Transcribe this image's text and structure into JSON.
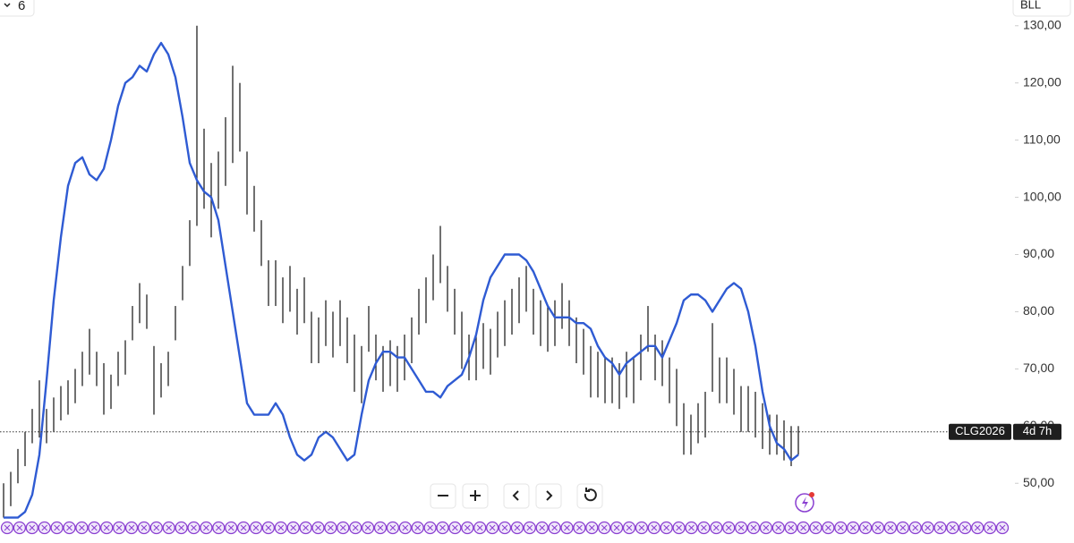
{
  "chart_data": {
    "type": "hl_bar",
    "interval": "6",
    "symbol_short": "BLL",
    "symbol": "CLG2026",
    "countdown": "4d 7h",
    "ylim": [
      43,
      134.5
    ],
    "yticks": [
      {
        "value": 50,
        "label": "50,00"
      },
      {
        "value": 60,
        "label": "60,00"
      },
      {
        "value": 70,
        "label": "70,00"
      },
      {
        "value": 80,
        "label": "80,00"
      },
      {
        "value": 90,
        "label": "90,00"
      },
      {
        "value": 100,
        "label": "100,00"
      },
      {
        "value": 110,
        "label": "110,00"
      },
      {
        "value": 120,
        "label": "120,00"
      },
      {
        "value": 130,
        "label": "130,00"
      }
    ],
    "price_line": 59,
    "bar_color": "#222222",
    "high": [
      50,
      52,
      56,
      59,
      63,
      68,
      63,
      65,
      67,
      68,
      70,
      73,
      77,
      73,
      71,
      69,
      73,
      75,
      81,
      85,
      83,
      74,
      71,
      73,
      81,
      88,
      96,
      130,
      112,
      106,
      108,
      114,
      123,
      120,
      108,
      102,
      96,
      89,
      89,
      86,
      88,
      84,
      86,
      80,
      79,
      82,
      80,
      82,
      79,
      76,
      74,
      81,
      76,
      74,
      75,
      74,
      76,
      79,
      84,
      86,
      90,
      95,
      88,
      84,
      80,
      76,
      76,
      78,
      77,
      80,
      82,
      84,
      86,
      88,
      84,
      82,
      81,
      82,
      85,
      82,
      79,
      77,
      74,
      73,
      72,
      72,
      71,
      73,
      72,
      76,
      81,
      76,
      75,
      72,
      70,
      64,
      62,
      64,
      66,
      78,
      72,
      72,
      70,
      67,
      67,
      66,
      64,
      62,
      62,
      61,
      60,
      60
    ],
    "low": [
      44,
      46,
      50,
      53,
      57,
      58,
      57,
      59,
      61,
      62,
      64,
      67,
      69,
      67,
      62,
      63,
      67,
      69,
      75,
      78,
      77,
      62,
      65,
      67,
      75,
      82,
      88,
      95,
      98,
      93,
      98,
      102,
      106,
      108,
      97,
      94,
      88,
      81,
      81,
      78,
      80,
      76,
      78,
      71,
      71,
      74,
      72,
      74,
      71,
      66,
      64,
      73,
      68,
      66,
      67,
      66,
      68,
      71,
      76,
      78,
      82,
      85,
      80,
      76,
      70,
      68,
      68,
      70,
      69,
      72,
      74,
      76,
      78,
      80,
      76,
      74,
      73,
      74,
      77,
      74,
      71,
      69,
      65,
      65,
      64,
      64,
      63,
      65,
      64,
      68,
      73,
      68,
      67,
      64,
      60,
      55,
      55,
      57,
      58,
      66,
      64,
      64,
      62,
      59,
      59,
      58,
      56,
      55,
      55,
      54,
      53,
      55
    ],
    "series": [
      {
        "color": "#2f5bd3",
        "values": [
          44,
          44,
          44,
          45,
          48,
          55,
          68,
          82,
          93,
          102,
          106,
          107,
          104,
          103,
          105,
          110,
          116,
          120,
          121,
          123,
          122,
          125,
          127,
          125,
          121,
          114,
          106,
          103,
          101,
          100,
          96,
          88,
          80,
          72,
          64,
          62,
          62,
          62,
          64,
          62,
          58,
          55,
          54,
          55,
          58,
          59,
          58,
          56,
          54,
          55,
          62,
          68,
          71,
          73,
          73,
          72,
          72,
          70,
          68,
          66,
          66,
          65,
          67,
          68,
          69,
          72,
          76,
          82,
          86,
          88,
          90,
          90,
          90,
          89,
          87,
          84,
          81,
          79,
          79,
          79,
          78,
          78,
          77,
          74,
          72,
          71,
          69,
          71,
          72,
          73,
          74,
          74,
          72,
          75,
          78,
          82,
          83,
          83,
          82,
          80,
          82,
          84,
          85,
          84,
          80,
          74,
          66,
          60,
          57,
          56,
          54,
          55
        ]
      }
    ]
  }
}
